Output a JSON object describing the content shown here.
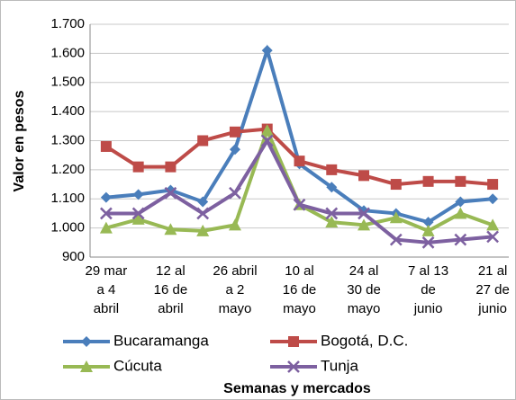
{
  "chart_data": {
    "type": "line",
    "y_label": "Valor en pesos",
    "x_label": "Semanas y mercados",
    "categories": [
      [
        "29 mar",
        "a 4",
        "abril"
      ],
      null,
      [
        "12 al",
        "16 de",
        "abril"
      ],
      null,
      [
        "26 abril",
        "a 2",
        "mayo"
      ],
      null,
      [
        "10 al",
        "16 de",
        "mayo"
      ],
      null,
      [
        "24 al",
        "30 de",
        "mayo"
      ],
      null,
      [
        "7 al 13",
        "de",
        "junio"
      ],
      null,
      [
        "21 al",
        "27 de",
        "junio"
      ]
    ],
    "series": [
      {
        "name": "Bucaramanga",
        "color": "#4a7ebb",
        "marker": "diamond",
        "values": [
          1105,
          1115,
          1130,
          1090,
          1270,
          1610,
          1220,
          1140,
          1060,
          1050,
          1020,
          1090,
          1100
        ]
      },
      {
        "name": "Bogotá, D.C.",
        "color": "#be4b48",
        "marker": "square",
        "values": [
          1280,
          1210,
          1210,
          1300,
          1330,
          1340,
          1230,
          1200,
          1180,
          1150,
          1160,
          1160,
          1150
        ]
      },
      {
        "name": "Cúcuta",
        "color": "#98b954",
        "marker": "triangle",
        "values": [
          1000,
          1030,
          995,
          990,
          1010,
          1335,
          1080,
          1020,
          1010,
          1035,
          990,
          1050,
          1010
        ]
      },
      {
        "name": "Tunja",
        "color": "#7d60a0",
        "marker": "x",
        "values": [
          1050,
          1050,
          1120,
          1050,
          1120,
          1300,
          1080,
          1050,
          1050,
          960,
          950,
          960,
          970
        ]
      }
    ],
    "ylim": [
      900,
      1700
    ],
    "yticks": [
      900,
      {
        "value": 1000,
        "label": "1.000"
      },
      {
        "value": 1100,
        "label": "1.100"
      },
      {
        "value": 1200,
        "label": "1.200"
      },
      {
        "value": 1300,
        "label": "1.300"
      },
      {
        "value": 1400,
        "label": "1.400"
      },
      {
        "value": 1500,
        "label": "1.500"
      },
      {
        "value": 1600,
        "label": "1.600"
      },
      {
        "value": 1700,
        "label": "1.700"
      }
    ],
    "grid": true
  }
}
